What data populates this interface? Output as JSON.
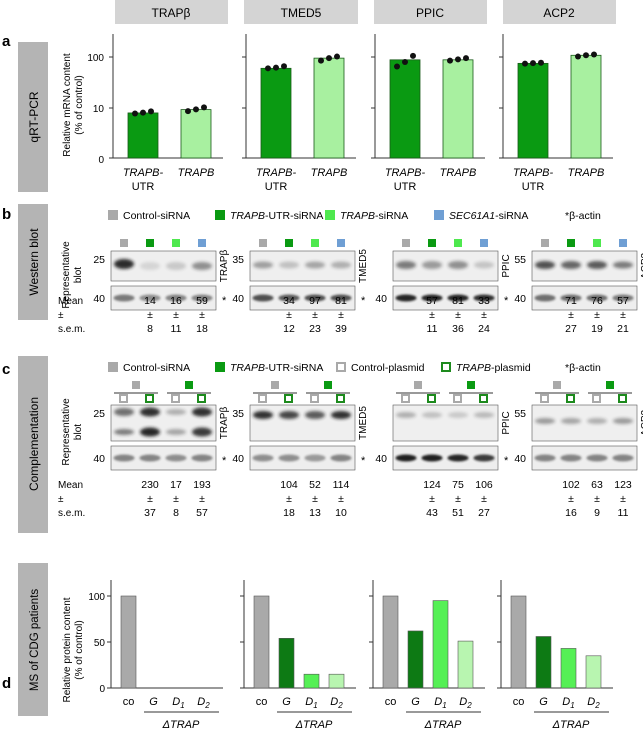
{
  "proteins": [
    "TRAPβ",
    "TMED5",
    "PPIC",
    "ACP2"
  ],
  "colors": {
    "header_bg": "#d4d4d4",
    "side_bg": "#b4b4b4",
    "dark_green": "#0a9a12",
    "light_green": "#a8f0a0",
    "bright_green": "#4ee84e",
    "ms_dark_green": "#0d7a14",
    "ms_bright_green": "#55f055",
    "ms_pale_green": "#b8f5b0",
    "gray": "#a9a9a9",
    "blue": "#6f9fd4"
  },
  "panel_a": {
    "letter": "a",
    "side_label": "qRT-PCR",
    "ylabel_line1": "Relative mRNA content",
    "ylabel_line2": "(% of control)",
    "yticks": [
      "100",
      "10",
      "0"
    ],
    "xlabels": [
      {
        "line1": "TRAPB-",
        "line2": "UTR"
      },
      {
        "line1": "TRAPB",
        "line2": ""
      }
    ],
    "chart_data": {
      "type": "bar",
      "yscale": "log",
      "ylabel": "Relative mRNA content (% of control)",
      "categories": [
        "TRAPB-UTR",
        "TRAPB"
      ],
      "series": [
        {
          "name": "TRAPβ",
          "values": [
            8,
            9.3
          ]
        },
        {
          "name": "TMED5",
          "values": [
            60,
            95
          ]
        },
        {
          "name": "PPIC",
          "values": [
            88,
            88
          ]
        },
        {
          "name": "ACP2",
          "values": [
            75,
            108
          ]
        }
      ],
      "points": [
        [
          [
            7.8,
            8.1,
            8.6
          ],
          [
            8.7,
            9.4,
            10.3
          ]
        ],
        [
          [
            60,
            62,
            66
          ],
          [
            85,
            95,
            102
          ]
        ],
        [
          [
            65,
            80,
            105
          ],
          [
            85,
            90,
            95
          ]
        ],
        [
          [
            74,
            76,
            77
          ],
          [
            102,
            108,
            112
          ]
        ]
      ]
    }
  },
  "panel_b": {
    "letter": "b",
    "side_label": "Western blot",
    "legend": [
      {
        "label": "Control-siRNA",
        "italic": "",
        "suffix": ""
      },
      {
        "label": "",
        "italic": "TRAPB",
        "suffix": "-UTR-siRNA"
      },
      {
        "label": "",
        "italic": "TRAPB",
        "suffix": "-siRNA"
      },
      {
        "label": "",
        "italic": "SEC61A1",
        "suffix": "-siRNA"
      }
    ],
    "beta_actin": "*β-actin",
    "rep_line1": "Representative",
    "rep_line2": "blot",
    "mean": "Mean",
    "pm": "±",
    "sem": "s.e.m.",
    "mw": [
      [
        "25",
        "40"
      ],
      [
        "35",
        "40"
      ],
      [
        "",
        "40"
      ],
      [
        "55",
        "40"
      ]
    ],
    "means": [
      [
        "14",
        "16",
        "59"
      ],
      [
        "34",
        "97",
        "81"
      ],
      [
        "57",
        "81",
        "33"
      ],
      [
        "71",
        "76",
        "57"
      ]
    ],
    "sems": [
      [
        "8",
        "11",
        "18"
      ],
      [
        "12",
        "23",
        "39"
      ],
      [
        "11",
        "36",
        "24"
      ],
      [
        "27",
        "19",
        "21"
      ]
    ]
  },
  "panel_c": {
    "letter": "c",
    "side_label": "Complementation",
    "legend": [
      {
        "label": "Control-siRNA",
        "italic": "",
        "suffix": ""
      },
      {
        "label": "",
        "italic": "TRAPB",
        "suffix": "-UTR-siRNA"
      },
      {
        "label": "Control-plasmid",
        "italic": "",
        "suffix": ""
      },
      {
        "label": "",
        "italic": "TRAPB",
        "suffix": "-plasmid"
      }
    ],
    "beta_actin": "*β-actin",
    "rep_line1": "Representative",
    "rep_line2": "blot",
    "mean": "Mean",
    "pm": "±",
    "sem": "s.e.m.",
    "mw": [
      [
        "25",
        "40"
      ],
      [
        "35",
        "40"
      ],
      [
        "",
        "40"
      ],
      [
        "55",
        "40"
      ]
    ],
    "means": [
      [
        "230",
        "17",
        "193"
      ],
      [
        "104",
        "52",
        "114"
      ],
      [
        "124",
        "75",
        "106"
      ],
      [
        "102",
        "63",
        "123"
      ]
    ],
    "sems": [
      [
        "37",
        "8",
        "57"
      ],
      [
        "18",
        "13",
        "10"
      ],
      [
        "43",
        "51",
        "27"
      ],
      [
        "16",
        "9",
        "11"
      ]
    ]
  },
  "panel_d": {
    "letter": "d",
    "side_label": "MS of CDG patients",
    "ylabel_line1": "Relative protein content",
    "ylabel_line2": "(% of control)",
    "yticks": [
      "100",
      "50",
      "0"
    ],
    "xlabels": [
      "co",
      "G",
      "D",
      "D"
    ],
    "subscripts": [
      "",
      "",
      "1",
      "2"
    ],
    "group_label": "ΔTRAP",
    "chart_data": {
      "type": "bar",
      "ylabel": "Relative protein content (% of control)",
      "ylim": [
        0,
        110
      ],
      "categories": [
        "co",
        "G",
        "D1",
        "D2"
      ],
      "series": [
        {
          "name": "TRAPβ",
          "values": [
            100,
            0,
            0,
            0
          ]
        },
        {
          "name": "TMED5",
          "values": [
            100,
            54,
            15,
            15
          ]
        },
        {
          "name": "PPIC",
          "values": [
            100,
            62,
            95,
            51
          ]
        },
        {
          "name": "ACP2",
          "values": [
            100,
            56,
            43,
            35
          ]
        }
      ]
    }
  }
}
